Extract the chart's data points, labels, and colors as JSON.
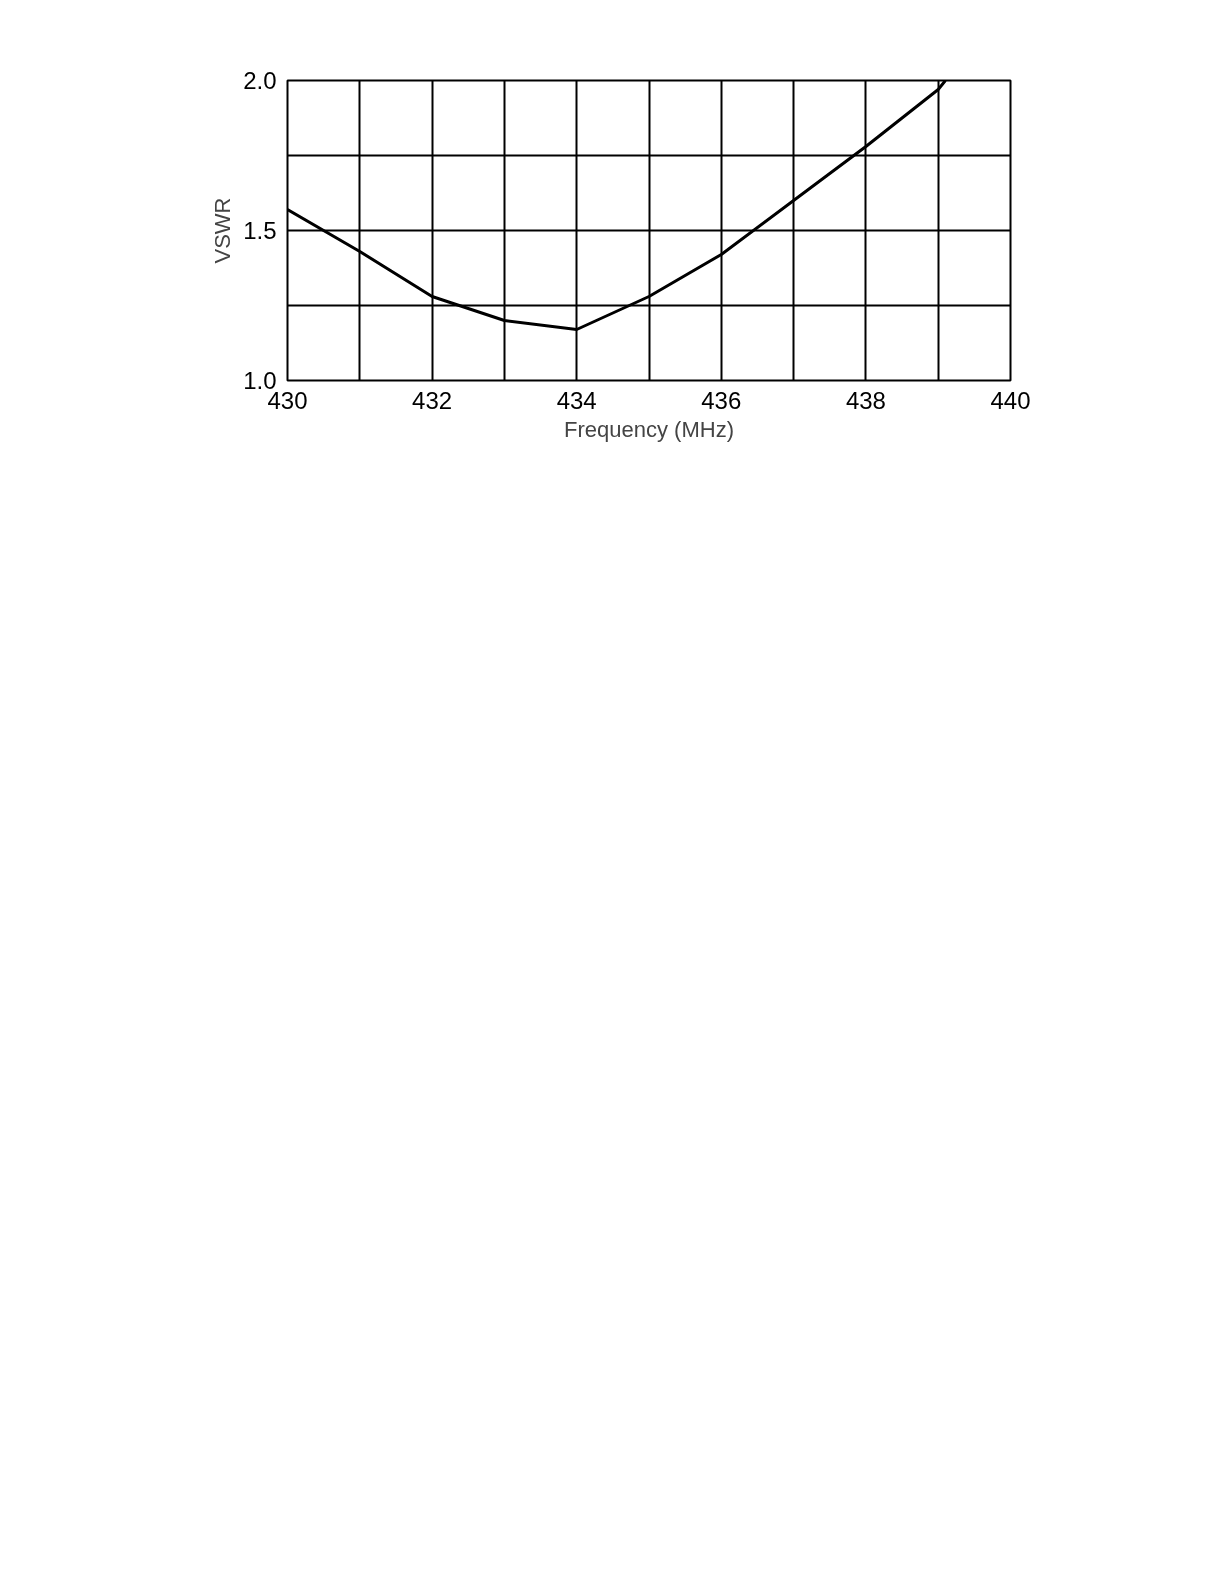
{
  "chart_data": {
    "type": "line",
    "xlabel": "Frequency (MHz)",
    "ylabel": "VSWR",
    "x": [
      430,
      431,
      432,
      433,
      434,
      435,
      436,
      437,
      438,
      439,
      439.1
    ],
    "series": [
      {
        "color": "#000000",
        "values": [
          1.57,
          1.43,
          1.28,
          1.2,
          1.17,
          1.28,
          1.42,
          1.6,
          1.78,
          1.97,
          2.0
        ]
      }
    ],
    "xlim": [
      430,
      440
    ],
    "ylim": [
      1.0,
      2.0
    ],
    "xticks": [
      430,
      {
        "value": 431,
        "label": null
      },
      432,
      {
        "value": 433,
        "label": null
      },
      434,
      {
        "value": 435,
        "label": null
      },
      436,
      {
        "value": 437,
        "label": null
      },
      438,
      {
        "value": 439,
        "label": null
      },
      440
    ],
    "yticks": [
      {
        "value": 1.0,
        "label": "1.0"
      },
      {
        "value": 1.25,
        "label": null
      },
      {
        "value": 1.5,
        "label": "1.5"
      },
      {
        "value": 1.75,
        "label": null
      },
      {
        "value": 2.0,
        "label": "2.0"
      }
    ],
    "grid": true,
    "marker": "none",
    "line_style": "solid"
  }
}
